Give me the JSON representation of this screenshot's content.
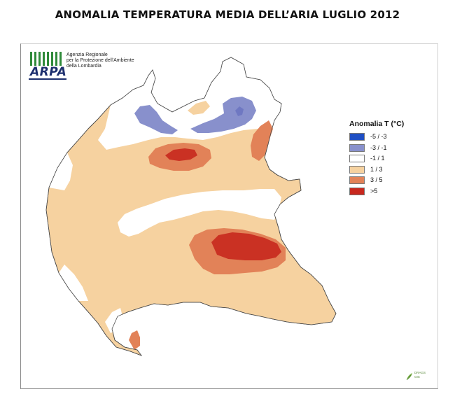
{
  "title": "ANOMALIA TEMPERATURA MEDIA DELL’ARIA LUGLIO 2012",
  "logo": {
    "name": "ARPA",
    "agency_line1": "Agenzia Regionale",
    "agency_line2": "per la Protezione dell'Ambiente",
    "agency_line3": "della Lombardia"
  },
  "legend": {
    "title": "Anomalia T (°C)",
    "items": [
      {
        "label": "-5 / -3",
        "color": "#1f4fc4"
      },
      {
        "label": "-3 / -1",
        "color": "#8890cc"
      },
      {
        "label": "-1 / 1",
        "color": "#ffffff"
      },
      {
        "label": "1 / 3",
        "color": "#f6d2a0"
      },
      {
        "label": "3 / 5",
        "color": "#e28258"
      },
      {
        "label": ">5",
        "color": "#c8281e"
      }
    ]
  },
  "credit": {
    "line1": "DRAGS",
    "line2": "GIS"
  }
}
